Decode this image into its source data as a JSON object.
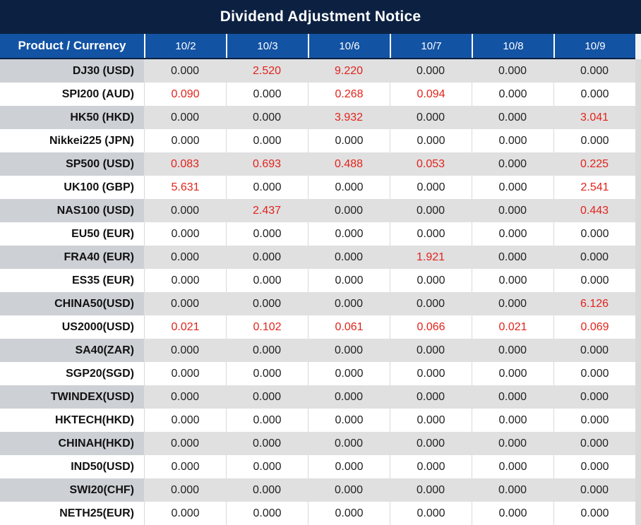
{
  "title": "Dividend Adjustment Notice",
  "colors": {
    "title_bar_bg": "#0c2142",
    "header_bg": "#1353a4",
    "header_text": "#ffffff",
    "alt_row_product_bg": "#cdd0d5",
    "alt_row_value_bg": "#e0e0e1",
    "plain_row_bg": "#ffffff",
    "value_text": "#222222",
    "nonzero_value_text": "#e2231a"
  },
  "table": {
    "columns": [
      "Product / Currency",
      "10/2",
      "10/3",
      "10/6",
      "10/7",
      "10/8",
      "10/9"
    ],
    "rows": [
      {
        "product": "DJ30 (USD)",
        "values": [
          "0.000",
          "2.520",
          "9.220",
          "0.000",
          "0.000",
          "0.000"
        ]
      },
      {
        "product": "SPI200 (AUD)",
        "values": [
          "0.090",
          "0.000",
          "0.268",
          "0.094",
          "0.000",
          "0.000"
        ]
      },
      {
        "product": "HK50 (HKD)",
        "values": [
          "0.000",
          "0.000",
          "3.932",
          "0.000",
          "0.000",
          "3.041"
        ]
      },
      {
        "product": "Nikkei225 (JPN)",
        "values": [
          "0.000",
          "0.000",
          "0.000",
          "0.000",
          "0.000",
          "0.000"
        ]
      },
      {
        "product": "SP500 (USD)",
        "values": [
          "0.083",
          "0.693",
          "0.488",
          "0.053",
          "0.000",
          "0.225"
        ]
      },
      {
        "product": "UK100 (GBP)",
        "values": [
          "5.631",
          "0.000",
          "0.000",
          "0.000",
          "0.000",
          "2.541"
        ]
      },
      {
        "product": "NAS100 (USD)",
        "values": [
          "0.000",
          "2.437",
          "0.000",
          "0.000",
          "0.000",
          "0.443"
        ]
      },
      {
        "product": "EU50 (EUR)",
        "values": [
          "0.000",
          "0.000",
          "0.000",
          "0.000",
          "0.000",
          "0.000"
        ]
      },
      {
        "product": "FRA40 (EUR)",
        "values": [
          "0.000",
          "0.000",
          "0.000",
          "1.921",
          "0.000",
          "0.000"
        ]
      },
      {
        "product": "ES35 (EUR)",
        "values": [
          "0.000",
          "0.000",
          "0.000",
          "0.000",
          "0.000",
          "0.000"
        ]
      },
      {
        "product": "CHINA50(USD)",
        "values": [
          "0.000",
          "0.000",
          "0.000",
          "0.000",
          "0.000",
          "6.126"
        ]
      },
      {
        "product": "US2000(USD)",
        "values": [
          "0.021",
          "0.102",
          "0.061",
          "0.066",
          "0.021",
          "0.069"
        ]
      },
      {
        "product": "SA40(ZAR)",
        "values": [
          "0.000",
          "0.000",
          "0.000",
          "0.000",
          "0.000",
          "0.000"
        ]
      },
      {
        "product": "SGP20(SGD)",
        "values": [
          "0.000",
          "0.000",
          "0.000",
          "0.000",
          "0.000",
          "0.000"
        ]
      },
      {
        "product": "TWINDEX(USD)",
        "values": [
          "0.000",
          "0.000",
          "0.000",
          "0.000",
          "0.000",
          "0.000"
        ]
      },
      {
        "product": "HKTECH(HKD)",
        "values": [
          "0.000",
          "0.000",
          "0.000",
          "0.000",
          "0.000",
          "0.000"
        ]
      },
      {
        "product": "CHINAH(HKD)",
        "values": [
          "0.000",
          "0.000",
          "0.000",
          "0.000",
          "0.000",
          "0.000"
        ]
      },
      {
        "product": "IND50(USD)",
        "values": [
          "0.000",
          "0.000",
          "0.000",
          "0.000",
          "0.000",
          "0.000"
        ]
      },
      {
        "product": "SWI20(CHF)",
        "values": [
          "0.000",
          "0.000",
          "0.000",
          "0.000",
          "0.000",
          "0.000"
        ]
      },
      {
        "product": "NETH25(EUR)",
        "values": [
          "0.000",
          "0.000",
          "0.000",
          "0.000",
          "0.000",
          "0.000"
        ]
      }
    ]
  }
}
